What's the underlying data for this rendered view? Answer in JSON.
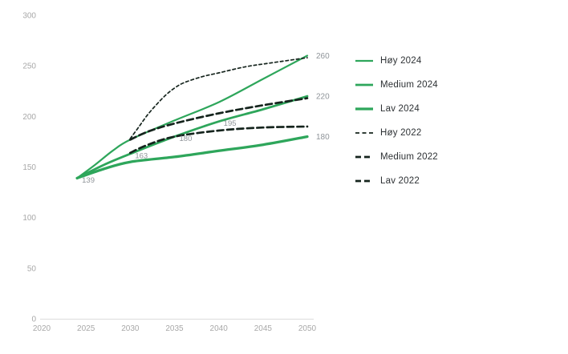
{
  "figure": {
    "background": "#ffffff",
    "accent_green": "#2ea65b",
    "dark_line": "#15241d",
    "axis_line_color": "#dcdcdc",
    "tick_label_color": "#a8a8a8",
    "value_label_color": "#8f9499"
  },
  "chart_data": {
    "type": "line",
    "title": "",
    "xlabel": "",
    "ylabel": "",
    "xlim": [
      2020,
      2050
    ],
    "ylim": [
      0,
      300
    ],
    "x_ticks": [
      "2020",
      "2025",
      "2030",
      "2035",
      "2040",
      "2045",
      "2050"
    ],
    "y_ticks": [
      "0",
      "50",
      "100",
      "150",
      "200",
      "250",
      "300"
    ],
    "grid": false,
    "legend_position": "right",
    "series": [
      {
        "name": "Høy 2024",
        "color": "#2ea65b",
        "style": "solid",
        "width": 2.2,
        "points": [
          [
            2024,
            139
          ],
          [
            2026,
            152
          ],
          [
            2028,
            166
          ],
          [
            2030,
            177
          ],
          [
            2035,
            196
          ],
          [
            2040,
            214
          ],
          [
            2045,
            237
          ],
          [
            2050,
            260
          ]
        ]
      },
      {
        "name": "Medium 2024",
        "color": "#2ea65b",
        "style": "solid",
        "width": 2.8,
        "points": [
          [
            2024,
            139
          ],
          [
            2027,
            152
          ],
          [
            2030,
            163
          ],
          [
            2035,
            180
          ],
          [
            2040,
            195
          ],
          [
            2045,
            207
          ],
          [
            2050,
            220
          ]
        ]
      },
      {
        "name": "Lav 2024",
        "color": "#2ea65b",
        "style": "solid",
        "width": 3.3,
        "points": [
          [
            2024,
            139
          ],
          [
            2027,
            148
          ],
          [
            2030,
            155
          ],
          [
            2035,
            160
          ],
          [
            2040,
            166
          ],
          [
            2045,
            172
          ],
          [
            2050,
            180
          ]
        ]
      },
      {
        "name": "Høy 2022",
        "color": "#15241d",
        "style": "dash-thin",
        "width": 1.7,
        "points": [
          [
            2030,
            178
          ],
          [
            2031,
            190
          ],
          [
            2032,
            202
          ],
          [
            2033,
            212
          ],
          [
            2034,
            221
          ],
          [
            2035,
            228
          ],
          [
            2036,
            233
          ],
          [
            2038,
            239
          ],
          [
            2040,
            243
          ],
          [
            2043,
            249
          ],
          [
            2046,
            253
          ],
          [
            2050,
            258
          ]
        ]
      },
      {
        "name": "Medium 2022",
        "color": "#15241d",
        "style": "dash-thick",
        "width": 2.7,
        "points": [
          [
            2030,
            177
          ],
          [
            2032,
            185
          ],
          [
            2035,
            193
          ],
          [
            2040,
            203
          ],
          [
            2045,
            211
          ],
          [
            2050,
            218
          ]
        ]
      },
      {
        "name": "Lav 2022",
        "color": "#15241d",
        "style": "dash-thick",
        "width": 2.7,
        "points": [
          [
            2030,
            164
          ],
          [
            2032,
            172
          ],
          [
            2035,
            180
          ],
          [
            2040,
            186
          ],
          [
            2045,
            189
          ],
          [
            2050,
            190
          ]
        ]
      }
    ],
    "point_labels": [
      {
        "text": "139",
        "year": 2024,
        "value": 139
      },
      {
        "text": "163",
        "year": 2030,
        "value": 163
      },
      {
        "text": "180",
        "year": 2035,
        "value": 180
      },
      {
        "text": "195",
        "year": 2040,
        "value": 195
      }
    ],
    "end_labels": [
      {
        "text": "260",
        "value": 260
      },
      {
        "text": "220",
        "value": 220
      },
      {
        "text": "180",
        "value": 180
      }
    ]
  },
  "legend": {
    "items": [
      {
        "label": "Høy 2024",
        "style": "solid",
        "color": "#2ea65b",
        "width": 2.2
      },
      {
        "label": "Medium 2024",
        "style": "solid",
        "color": "#2ea65b",
        "width": 2.8
      },
      {
        "label": "Lav 2024",
        "style": "solid",
        "color": "#2ea65b",
        "width": 3.3
      },
      {
        "label": "Høy 2022",
        "style": "dash-thin",
        "color": "#15241d",
        "width": 1.7
      },
      {
        "label": "Medium 2022",
        "style": "dash-thick",
        "color": "#15241d",
        "width": 2.7
      },
      {
        "label": "Lav 2022",
        "style": "dash-thick",
        "color": "#15241d",
        "width": 2.7
      }
    ]
  }
}
